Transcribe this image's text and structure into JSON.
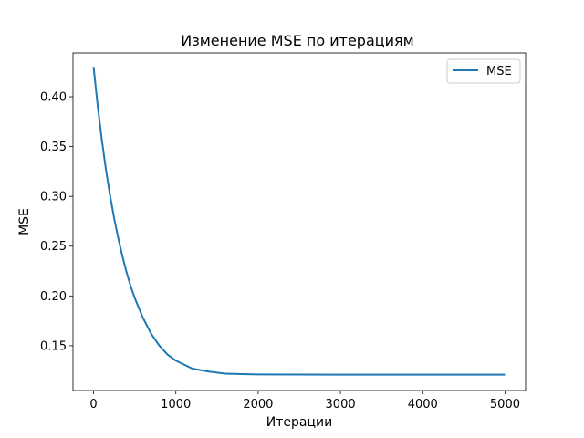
{
  "chart_data": {
    "type": "line",
    "title": "Изменение MSE по итерациям",
    "xlabel": "Итерации",
    "ylabel": "MSE",
    "xlim": [
      -250,
      5250
    ],
    "ylim": [
      0.105,
      0.444
    ],
    "xticks": [
      0,
      1000,
      2000,
      3000,
      4000,
      5000
    ],
    "xtick_labels": [
      "0",
      "1000",
      "2000",
      "3000",
      "4000",
      "5000"
    ],
    "yticks": [
      0.15,
      0.2,
      0.25,
      0.3,
      0.35,
      0.4
    ],
    "ytick_labels": [
      "0.15",
      "0.20",
      "0.25",
      "0.30",
      "0.35",
      "0.40"
    ],
    "grid": false,
    "legend": {
      "position": "top-right",
      "entries": [
        "MSE"
      ]
    },
    "series": [
      {
        "name": "MSE",
        "color": "#1f77b4",
        "x": [
          0,
          50,
          100,
          150,
          200,
          250,
          300,
          350,
          400,
          450,
          500,
          600,
          700,
          800,
          900,
          1000,
          1200,
          1400,
          1600,
          1800,
          2000,
          2500,
          3000,
          3500,
          4000,
          4500,
          5000
        ],
        "y": [
          0.43,
          0.391,
          0.357,
          0.327,
          0.301,
          0.278,
          0.258,
          0.24,
          0.224,
          0.21,
          0.198,
          0.178,
          0.162,
          0.15,
          0.141,
          0.135,
          0.127,
          0.124,
          0.122,
          0.1215,
          0.1212,
          0.121,
          0.1209,
          0.1209,
          0.1209,
          0.1209,
          0.1209
        ]
      }
    ]
  }
}
